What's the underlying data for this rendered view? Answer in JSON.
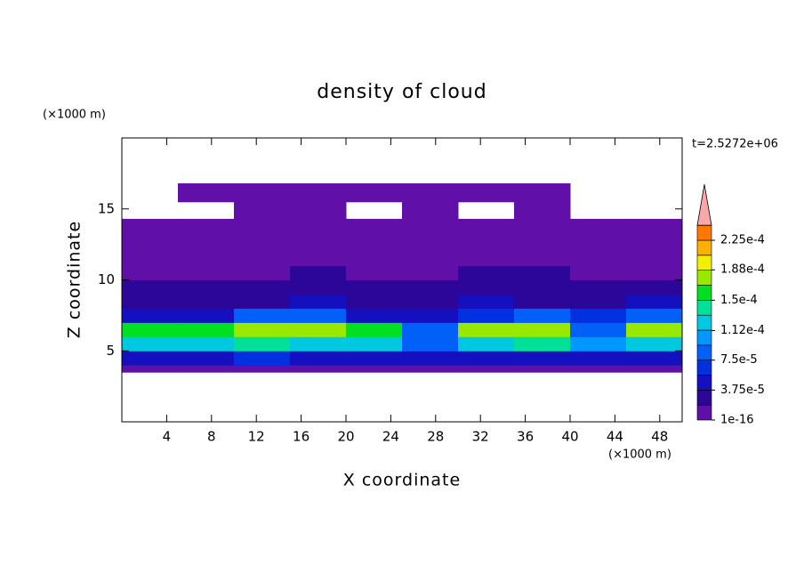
{
  "chart_data": {
    "type": "contour",
    "title": "density of cloud",
    "x_label": "X coordinate",
    "y_label": "Z coordinate",
    "x_unit": "(×1000 m)",
    "y_unit": "(×1000 m)",
    "annotation": "t=2.5272e+06",
    "xlim": [
      0,
      50
    ],
    "ylim": [
      0,
      20
    ],
    "xticks": [
      4,
      8,
      12,
      16,
      20,
      24,
      28,
      32,
      36,
      40,
      44,
      48
    ],
    "yticks": [
      5,
      10,
      15
    ],
    "x_edges": [
      0,
      5,
      10,
      15,
      20,
      25,
      30,
      35,
      40,
      45,
      50
    ],
    "z_edges": [
      3.5,
      4,
      5,
      6,
      7,
      8,
      9,
      10,
      11,
      12,
      13,
      14,
      14.3,
      15.5,
      16.8
    ],
    "values": [
      [
        5e-06,
        5e-06,
        5e-06,
        5e-06,
        5e-06,
        5e-06,
        5e-06,
        5e-06,
        5e-06,
        5e-06
      ],
      [
        5e-05,
        5e-05,
        6e-05,
        5e-05,
        5e-05,
        4e-05,
        5e-05,
        5e-05,
        4e-05,
        5e-05
      ],
      [
        0.00013,
        0.00012,
        0.00014,
        0.00013,
        0.00012,
        9e-05,
        0.00013,
        0.00014,
        0.00011,
        0.00013
      ],
      [
        0.00016,
        0.00015,
        0.00017,
        0.00018,
        0.00016,
        8e-05,
        0.00017,
        0.00018,
        9e-05,
        0.00017
      ],
      [
        5e-05,
        4e-05,
        8e-05,
        9e-05,
        5e-05,
        4e-05,
        7e-05,
        8e-05,
        6e-05,
        9e-05
      ],
      [
        3e-05,
        2.5e-05,
        3e-05,
        4e-05,
        3e-05,
        3e-05,
        4e-05,
        3e-05,
        3e-05,
        4e-05
      ],
      [
        2e-05,
        2e-05,
        2.5e-05,
        3e-05,
        2e-05,
        2e-05,
        3e-05,
        3e-05,
        2e-05,
        2e-05
      ],
      [
        1.5e-05,
        1.2e-05,
        1.5e-05,
        2e-05,
        1.5e-05,
        1.5e-05,
        2e-05,
        2e-05,
        1.5e-05,
        1.5e-05
      ],
      [
        1e-05,
        1e-05,
        1e-05,
        1.2e-05,
        1e-05,
        1e-05,
        1.2e-05,
        1.2e-05,
        1e-05,
        1e-05
      ],
      [
        8e-06,
        8e-06,
        8e-06,
        8e-06,
        8e-06,
        8e-06,
        8e-06,
        8e-06,
        8e-06,
        8e-06
      ],
      [
        5e-06,
        5e-06,
        5e-06,
        5e-06,
        5e-06,
        5e-06,
        5e-06,
        5e-06,
        5e-06,
        5e-06
      ],
      [
        3e-06,
        3e-06,
        3e-06,
        3e-06,
        3e-06,
        3e-06,
        3e-06,
        3e-06,
        3e-06,
        3e-06
      ],
      [
        null,
        null,
        3e-06,
        3e-06,
        null,
        3e-06,
        null,
        3e-06,
        null,
        null
      ],
      [
        null,
        3e-06,
        3e-06,
        3e-06,
        3e-06,
        3e-06,
        3e-06,
        3e-06,
        null,
        null
      ]
    ],
    "colorbar": {
      "bounds": [
        1e-16,
        1.875e-05,
        3.75e-05,
        5.625e-05,
        7.5e-05,
        9.375e-05,
        0.0001125,
        0.00013125,
        0.00015,
        0.00016875,
        0.0001875,
        0.00020625,
        0.000225,
        0.00024375
      ],
      "colors": [
        "#6010a8",
        "#2c0698",
        "#1410c0",
        "#0030e0",
        "#0060f8",
        "#0098ff",
        "#00c8e0",
        "#00e098",
        "#00e020",
        "#98e800",
        "#f0f000",
        "#ffb000",
        "#ff7800"
      ],
      "extend_color": "#f8a8a8",
      "ticks": [
        {
          "value": 1e-16,
          "label": "1e-16"
        },
        {
          "value": 3.75e-05,
          "label": "3.75e-5"
        },
        {
          "value": 7.5e-05,
          "label": "7.5e-5"
        },
        {
          "value": 0.000112,
          "label": "1.12e-4"
        },
        {
          "value": 0.00015,
          "label": "1.5e-4"
        },
        {
          "value": 0.000188,
          "label": "1.88e-4"
        },
        {
          "value": 0.000225,
          "label": "2.25e-4"
        }
      ]
    }
  }
}
